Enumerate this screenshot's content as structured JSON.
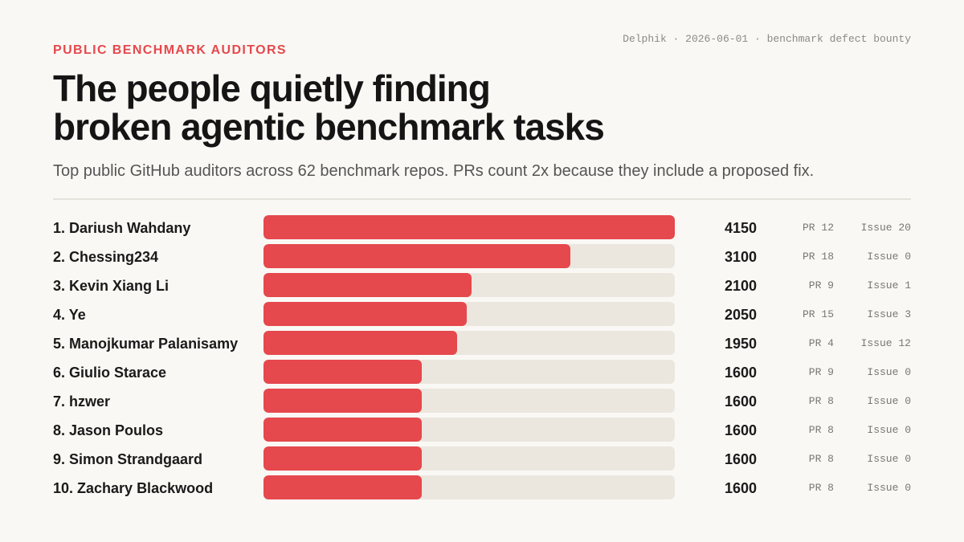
{
  "meta": "Delphik · 2026-06-01 · benchmark defect bounty",
  "eyebrow": "PUBLIC BENCHMARK AUDITORS",
  "title_line1": "The people quietly finding",
  "title_line2": "broken agentic benchmark tasks",
  "subtitle": "Top public GitHub auditors across 62 benchmark repos. PRs count 2x because they include a proposed fix.",
  "colors": {
    "accent": "#e5484d",
    "track": "#ebe7df",
    "background": "#faf8f4"
  },
  "chart_data": {
    "type": "bar",
    "orientation": "horizontal",
    "xlim": [
      0,
      4150
    ],
    "grid": false,
    "categories": [
      "1. Dariush Wahdany",
      "2. Chessing234",
      "3. Kevin Xiang Li",
      "4. Ye",
      "5. Manojkumar Palanisamy",
      "6. Giulio Starace",
      "7. hzwer",
      "8. Jason Poulos",
      "9. Simon Strandgaard",
      "10. Zachary Blackwood"
    ],
    "values": [
      4150,
      3100,
      2100,
      2050,
      1950,
      1600,
      1600,
      1600,
      1600,
      1600
    ],
    "pr_labels": [
      "PR 12",
      "PR 18",
      "PR 9",
      "PR 15",
      "PR 4",
      "PR 9",
      "PR 8",
      "PR 8",
      "PR 8",
      "PR 8"
    ],
    "issue_labels": [
      "Issue 20",
      "Issue 0",
      "Issue 1",
      "Issue 3",
      "Issue 12",
      "Issue 0",
      "Issue 0",
      "Issue 0",
      "Issue 0",
      "Issue 0"
    ]
  }
}
